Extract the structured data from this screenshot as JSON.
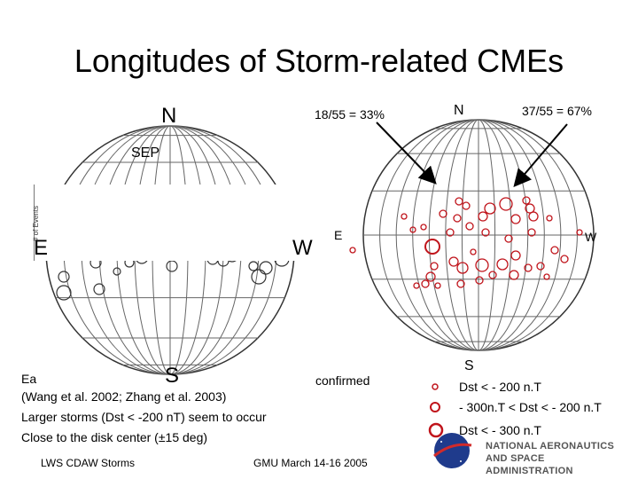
{
  "title": "Longitudes of Storm-related CMEs",
  "left_disk": {
    "north": "N",
    "south": "S",
    "east": "E",
    "west": "W",
    "sep_label": "SEP",
    "y_axis_label": "# of Events"
  },
  "right_disk": {
    "north": "N",
    "south": "S",
    "east": "E",
    "west": "W"
  },
  "stats": {
    "left_fraction": "18/55 = 33%",
    "right_fraction": "37/55 = 67%"
  },
  "notes": {
    "line1_fragment_start": "Ea",
    "line1_fragment_end": "confirmed",
    "line2": "(Wang et al. 2002; Zhang et al. 2003)",
    "line3": "Larger storms (Dst < -200 nT) seem to occur",
    "line4": "Close to the disk center (±15 deg)"
  },
  "legend": {
    "small": "Dst < - 200 n.T",
    "medium": "- 300n.T < Dst < - 200 n.T",
    "large": "Dst < - 300 n.T"
  },
  "footer": {
    "left": "LWS CDAW Storms",
    "center": "GMU March 14-16 2005"
  },
  "nasa": {
    "line1": "NATIONAL AERONAUTICS",
    "line2": "AND SPACE ADMINISTRATION",
    "logo_text": "NASA"
  },
  "colors": {
    "event_red": "#c0141b",
    "left_circles": "#333333",
    "grid": "#555555"
  }
}
